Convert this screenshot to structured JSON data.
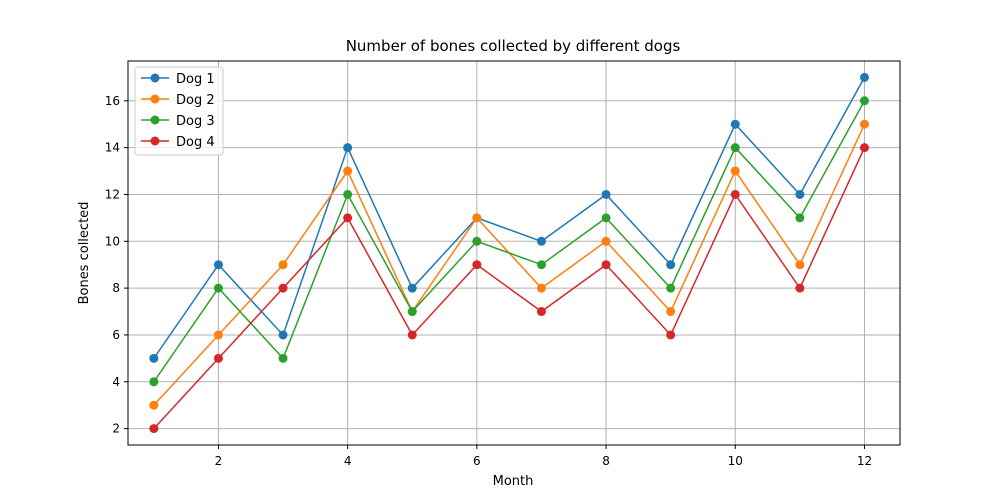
{
  "chart_data": {
    "type": "line",
    "title": "Number of bones collected by different dogs",
    "xlabel": "Month",
    "ylabel": "Bones collected",
    "x": [
      1,
      2,
      3,
      4,
      5,
      6,
      7,
      8,
      9,
      10,
      11,
      12
    ],
    "xlim": [
      0.6,
      12.55
    ],
    "ylim": [
      1.3,
      17.7
    ],
    "xticks": [
      2,
      4,
      6,
      8,
      10,
      12
    ],
    "yticks": [
      2,
      4,
      6,
      8,
      10,
      12,
      14,
      16
    ],
    "grid": true,
    "legend_position": "top-left",
    "series": [
      {
        "name": "Dog 1",
        "color": "#1f77b4",
        "values": [
          5,
          9,
          6,
          14,
          8,
          11,
          10,
          12,
          9,
          15,
          12,
          17
        ]
      },
      {
        "name": "Dog 2",
        "color": "#ff7f0e",
        "values": [
          3,
          6,
          9,
          13,
          7,
          11,
          8,
          10,
          7,
          13,
          9,
          15
        ]
      },
      {
        "name": "Dog 3",
        "color": "#2ca02c",
        "values": [
          4,
          8,
          5,
          12,
          7,
          10,
          9,
          11,
          8,
          14,
          11,
          16
        ]
      },
      {
        "name": "Dog 4",
        "color": "#d62728",
        "values": [
          2,
          5,
          8,
          11,
          6,
          9,
          7,
          9,
          6,
          12,
          8,
          14
        ]
      }
    ]
  }
}
